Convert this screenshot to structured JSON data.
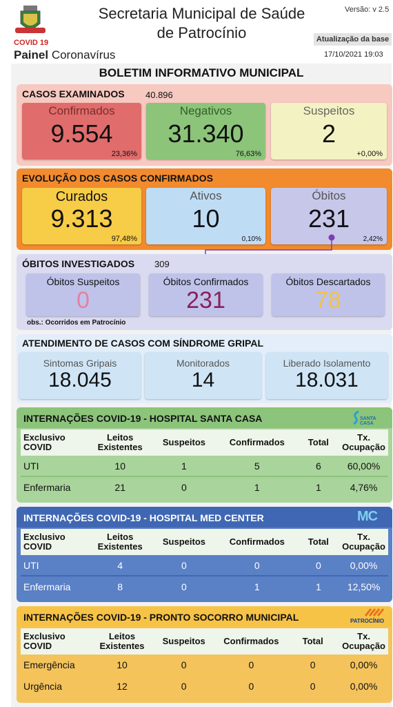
{
  "header": {
    "covid_label": "COVID 19",
    "painel_bold": "Painel",
    "painel_rest": "Coronavírus",
    "title_line1": "Secretaria Municipal de Saúde",
    "title_line2": "de Patrocínio",
    "version": "Versão: v 2.5",
    "update_label": "Atualização da base",
    "update_datetime": "17/10/2021 19:03"
  },
  "bulletin_title": "BOLETIM INFORMATIVO MUNICIPAL",
  "casos_examinados": {
    "title": "CASOS EXAMINADOS",
    "total": "40.896",
    "cards": [
      {
        "label": "Confirmados",
        "value": "9.554",
        "pct": "23,36%"
      },
      {
        "label": "Negativos",
        "value": "31.340",
        "pct": "76,63%"
      },
      {
        "label": "Suspeitos",
        "value": "2",
        "pct": "+0,00%"
      }
    ]
  },
  "evolucao": {
    "title": "EVOLUÇÃO DOS CASOS CONFIRMADOS",
    "cards": [
      {
        "label": "Curados",
        "value": "9.313",
        "pct": "97,48%"
      },
      {
        "label": "Ativos",
        "value": "10",
        "pct": "0,10%"
      },
      {
        "label": "Óbitos",
        "value": "231",
        "pct": "2,42%"
      }
    ]
  },
  "obitos_investigados": {
    "title": "ÓBITOS INVESTIGADOS",
    "total": "309",
    "cards": [
      {
        "label": "Óbitos Suspeitos",
        "value": "0"
      },
      {
        "label": "Óbitos Confirmados",
        "value": "231"
      },
      {
        "label": "Óbitos Descartados",
        "value": "78"
      }
    ],
    "obs": "obs.: Ocorridos em Patrocínio"
  },
  "sindrome_gripal": {
    "title": "ATENDIMENTO DE CASOS COM SÍNDROME GRIPAL",
    "cards": [
      {
        "label": "Sintomas Gripais",
        "value": "18.045"
      },
      {
        "label": "Monitorados",
        "value": "14"
      },
      {
        "label": "Liberado Isolamento",
        "value": "18.031"
      }
    ]
  },
  "table_headers": {
    "col1_l1": "Exclusivo",
    "col1_l2": "COVID",
    "col2_l1": "Leitos",
    "col2_l2": "Existentes",
    "col3": "Suspeitos",
    "col4": "Confirmados",
    "col5": "Total",
    "col6_l1": "Tx.",
    "col6_l2": "Ocupação"
  },
  "hospitals": [
    {
      "title": "INTERNAÇÕES COVID-19 - HOSPITAL SANTA CASA",
      "logo_text": "SANTA CASA",
      "rows": [
        {
          "name": "UTI",
          "leitos": "10",
          "suspeitos": "1",
          "confirmados": "5",
          "total": "6",
          "tx": "60,00%"
        },
        {
          "name": "Enfermaria",
          "leitos": "21",
          "suspeitos": "0",
          "confirmados": "1",
          "total": "1",
          "tx": "4,76%"
        }
      ]
    },
    {
      "title": "INTERNAÇÕES COVID-19 - HOSPITAL MED CENTER",
      "logo_text": "MC",
      "rows": [
        {
          "name": "UTI",
          "leitos": "4",
          "suspeitos": "0",
          "confirmados": "0",
          "total": "0",
          "tx": "0,00%"
        },
        {
          "name": "Enfermaria",
          "leitos": "8",
          "suspeitos": "0",
          "confirmados": "1",
          "total": "1",
          "tx": "12,50%"
        }
      ]
    },
    {
      "title": "INTERNAÇÕES COVID-19 - PRONTO SOCORRO MUNICIPAL",
      "logo_text": "PATROCÍNIO",
      "rows": [
        {
          "name": "Emergência",
          "leitos": "10",
          "suspeitos": "0",
          "confirmados": "0",
          "total": "0",
          "tx": "0,00%"
        },
        {
          "name": "Urgência",
          "leitos": "12",
          "suspeitos": "0",
          "confirmados": "0",
          "total": "0",
          "tx": "0,00%"
        }
      ]
    }
  ],
  "colors": {
    "casos_bg": "#f7c9c0",
    "confirmados": "#e06c6c",
    "negativos": "#8cc47a",
    "suspeitos": "#f3f2c2",
    "evolucao_bg": "#f28a2e",
    "curados": "#f7cc47",
    "ativos": "#bfdcf5",
    "obitos": "#c7c7ea",
    "investigados_bg": "#dadbf0",
    "inv_card": "#bfc3ea",
    "inv_suspeitos_value": "#e77fa0",
    "inv_confirmados_value": "#8a1f5c",
    "inv_descartados_value": "#f2c14b",
    "gripal_bg": "#e3eefa",
    "gripal_card": "#cfe5f6",
    "santa_casa_header": "#8bc47a",
    "santa_casa_rows": "#a9d49b",
    "med_center_header": "#3f67b3",
    "med_center_rows": "#5a80c6",
    "pronto_socorro_header": "#f7c347",
    "pronto_socorro_rows": "#f4c35c"
  }
}
